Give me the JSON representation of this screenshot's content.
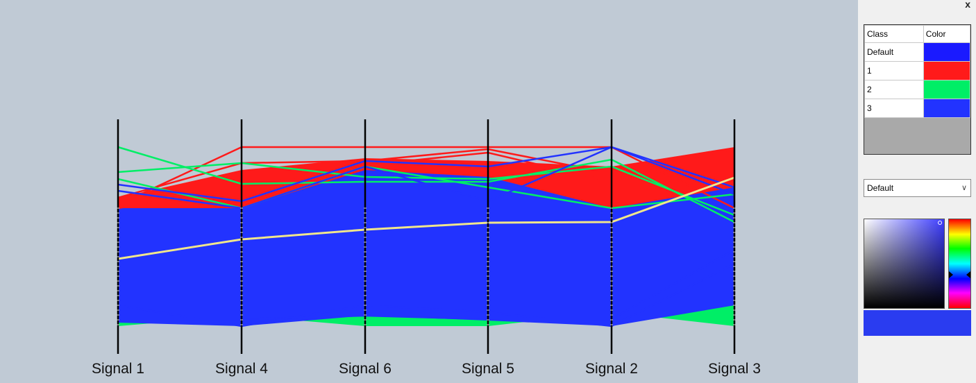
{
  "plot": {
    "background": "#c0cad5",
    "axes": [
      {
        "label": "Signal 1"
      },
      {
        "label": "Signal 4"
      },
      {
        "label": "Signal 6"
      },
      {
        "label": "Signal 5"
      },
      {
        "label": "Signal 2"
      },
      {
        "label": "Signal 3"
      }
    ],
    "highlight_color": "#f0e68c"
  },
  "side_panel": {
    "close_label": "x",
    "table": {
      "headers": [
        "Class",
        "Color"
      ],
      "rows": [
        {
          "class": "Default",
          "color": "#1a1aff"
        },
        {
          "class": "1",
          "color": "#ff1a1a"
        },
        {
          "class": "2",
          "color": "#00ee66"
        },
        {
          "class": "3",
          "color": "#2233ff"
        }
      ]
    },
    "dropdown": {
      "selected": "Default"
    },
    "selected_color": "#2a3cf0"
  }
}
